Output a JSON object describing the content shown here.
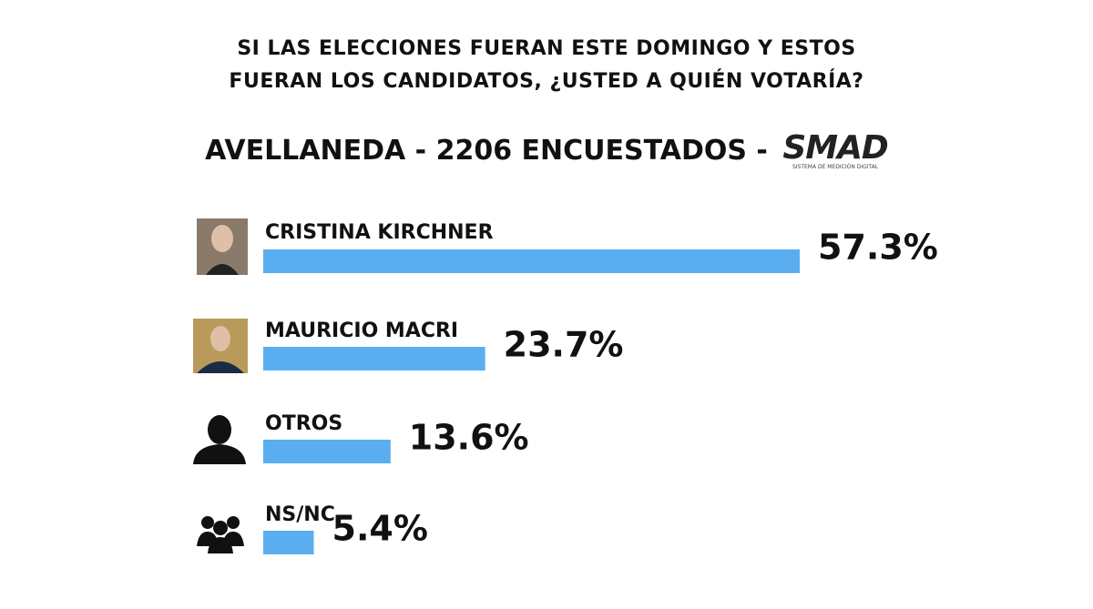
{
  "chart_data": {
    "type": "bar",
    "orientation": "horizontal",
    "title": "SI LAS ELECCIONES FUERAN ESTE DOMINGO Y ESTOS FUERAN LOS CANDIDATOS, ¿USTED A QUIÉN VOTARÍA?",
    "subtitle": "AVELLANEDA - 2206 ENCUESTADOS -",
    "logo": "SMAD",
    "logo_caption": "SISTEMA DE MEDICIÓN DIGITAL",
    "categories": [
      "CRISTINA KIRCHNER",
      "MAURICIO MACRI",
      "OTROS",
      "NS/NC"
    ],
    "values": [
      57.3,
      23.7,
      13.6,
      5.4
    ],
    "value_labels": [
      "57.3%",
      "23.7%",
      "13.6%",
      "5.4%"
    ],
    "color": "#5aaef0"
  }
}
